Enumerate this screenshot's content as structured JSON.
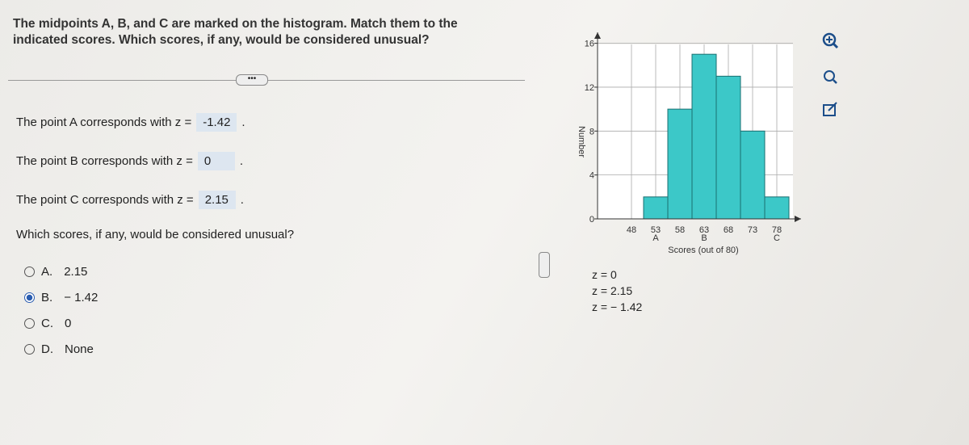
{
  "question": {
    "line1": "The midpoints A, B, and C are marked on the histogram. Match them to the",
    "line2": "indicated scores. Which scores, if any, would be considered unusual?"
  },
  "statements": [
    {
      "prefix": "The point A corresponds with z =",
      "answer": "-1.42",
      "suffix": "."
    },
    {
      "prefix": "The point B corresponds with z =",
      "answer": "0",
      "suffix": "."
    },
    {
      "prefix": "The point C corresponds with z =",
      "answer": "2.15",
      "suffix": "."
    }
  ],
  "prompt": "Which scores, if any, would be considered unusual?",
  "choices": [
    {
      "letter": "A.",
      "text": "2.15",
      "selected": false
    },
    {
      "letter": "B.",
      "text": "− 1.42",
      "selected": true
    },
    {
      "letter": "C.",
      "text": "0",
      "selected": false
    },
    {
      "letter": "D.",
      "text": "None",
      "selected": false
    }
  ],
  "z_options": [
    "z = 0",
    "z = 2.15",
    "z = − 1.42"
  ],
  "chart_data": {
    "type": "histogram",
    "x_label": "Scores (out of 80)",
    "y_label": "Number",
    "bins": [
      50.5,
      55.5,
      60.5,
      65.5,
      70.5,
      75.5,
      80.5
    ],
    "counts": [
      2,
      10,
      15,
      13,
      8,
      2
    ],
    "color": "#3cc8c8",
    "xlim": [
      41,
      83
    ],
    "ylim": [
      0,
      17
    ],
    "xticks": [
      48,
      53,
      58,
      63,
      68,
      73,
      78
    ],
    "yticks": [
      0,
      4,
      8,
      12,
      16
    ],
    "grid": true,
    "point_labels": [
      {
        "label": "A",
        "x": 53
      },
      {
        "label": "B",
        "x": 63
      },
      {
        "label": "C",
        "x": 78
      }
    ]
  }
}
